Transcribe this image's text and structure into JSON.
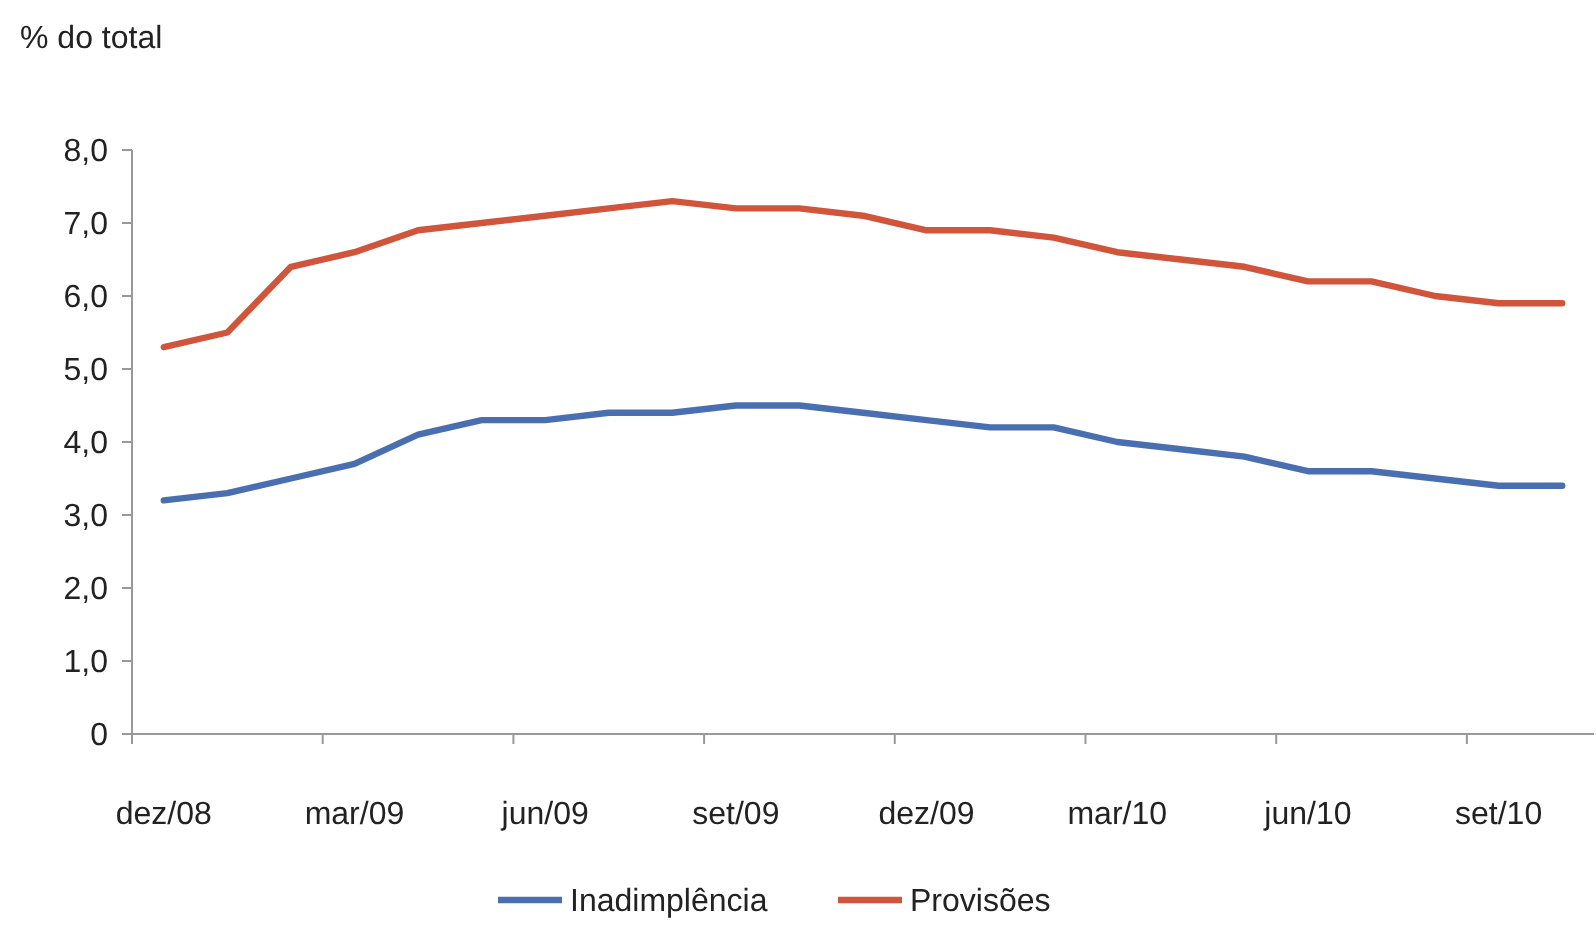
{
  "chart_data": {
    "type": "line",
    "ylabel": "% do total",
    "categories": [
      "dez/08",
      null,
      null,
      "mar/09",
      null,
      null,
      "jun/09",
      null,
      null,
      "set/09",
      null,
      null,
      "dez/09",
      null,
      null,
      "mar/10",
      null,
      null,
      "jun/10",
      null,
      null,
      "set/10",
      null
    ],
    "series": [
      {
        "name": "Inadimplência",
        "color": "#4a6fb0",
        "values": [
          3.2,
          3.3,
          3.5,
          3.7,
          4.1,
          4.3,
          4.3,
          4.4,
          4.4,
          4.5,
          4.5,
          4.4,
          4.3,
          4.2,
          4.2,
          4.0,
          3.9,
          3.8,
          3.6,
          3.6,
          3.5,
          3.4,
          3.4
        ]
      },
      {
        "name": "Provisões",
        "color": "#d0553a",
        "values": [
          5.3,
          5.5,
          6.4,
          6.6,
          6.9,
          7.0,
          7.1,
          7.2,
          7.3,
          7.2,
          7.2,
          7.1,
          6.9,
          6.9,
          6.8,
          6.6,
          6.5,
          6.4,
          6.2,
          6.2,
          6.0,
          5.9,
          5.9
        ]
      }
    ],
    "ylim": [
      0,
      8
    ],
    "yticks": [
      0,
      {
        "value": 1,
        "label": "1,0"
      },
      {
        "value": 2,
        "label": "2,0"
      },
      {
        "value": 3,
        "label": "3,0"
      },
      {
        "value": 4,
        "label": "4,0"
      },
      {
        "value": 5,
        "label": "5,0"
      },
      {
        "value": 6,
        "label": "6,0"
      },
      {
        "value": 7,
        "label": "7,0"
      },
      {
        "value": 8,
        "label": "8,0"
      }
    ],
    "grid": false,
    "legend": "bottom",
    "marker": "none",
    "line_style": "solid"
  }
}
